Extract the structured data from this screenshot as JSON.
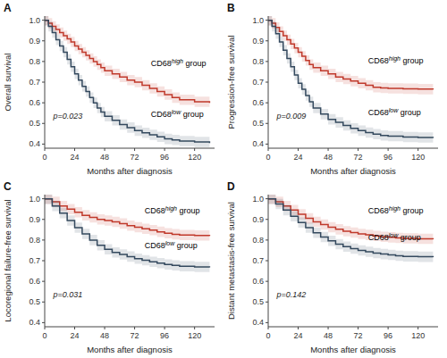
{
  "chart_data": [
    {
      "type": "step",
      "title": "A",
      "x_label": "Months after diagnosis",
      "y_label": "Overall survival",
      "xlim": [
        0,
        136
      ],
      "xticks": [
        0,
        24,
        48,
        72,
        96,
        120
      ],
      "ylim": [
        0.38,
        1.02
      ],
      "yticks": [
        0.4,
        0.5,
        0.6,
        0.7,
        0.8,
        0.9,
        {
          "value": 1.0,
          "label": "1.0"
        }
      ],
      "grid": false,
      "ci_halfwidth": 0.025,
      "annotations": [
        {
          "text": "p=0.023"
        }
      ],
      "x": [
        0,
        3,
        6,
        9,
        12,
        15,
        18,
        21,
        24,
        27,
        30,
        33,
        36,
        39,
        42,
        45,
        48,
        54,
        60,
        66,
        72,
        78,
        84,
        90,
        96,
        102,
        108,
        120,
        132
      ],
      "series": [
        {
          "name": "CD68 high group",
          "color": "#c0392b",
          "label_x": 85,
          "label_y": 0.78,
          "values": [
            1.0,
            0.985,
            0.97,
            0.955,
            0.94,
            0.925,
            0.91,
            0.895,
            0.875,
            0.86,
            0.845,
            0.83,
            0.815,
            0.8,
            0.785,
            0.77,
            0.755,
            0.74,
            0.725,
            0.71,
            0.7,
            0.685,
            0.67,
            0.655,
            0.64,
            0.625,
            0.615,
            0.605,
            0.6
          ]
        },
        {
          "name": "CD68 low group",
          "color": "#34495e",
          "label_x": 85,
          "label_y": 0.53,
          "values": [
            1.0,
            0.97,
            0.94,
            0.905,
            0.875,
            0.845,
            0.81,
            0.775,
            0.74,
            0.71,
            0.68,
            0.655,
            0.625,
            0.6,
            0.575,
            0.555,
            0.535,
            0.515,
            0.495,
            0.48,
            0.465,
            0.455,
            0.445,
            0.435,
            0.425,
            0.42,
            0.415,
            0.41,
            0.405
          ]
        }
      ]
    },
    {
      "type": "step",
      "title": "B",
      "x_label": "Months after diagnosis",
      "y_label": "Progression-free survival",
      "xlim": [
        0,
        136
      ],
      "xticks": [
        0,
        24,
        48,
        72,
        96,
        120
      ],
      "ylim": [
        0.38,
        1.02
      ],
      "yticks": [
        0.4,
        0.5,
        0.6,
        0.7,
        0.8,
        0.9,
        {
          "value": 1.0,
          "label": "1.0"
        }
      ],
      "grid": false,
      "ci_halfwidth": 0.025,
      "annotations": [
        {
          "text": "p=0.009"
        }
      ],
      "x": [
        0,
        3,
        6,
        9,
        12,
        15,
        18,
        21,
        24,
        27,
        30,
        33,
        36,
        42,
        48,
        54,
        60,
        66,
        72,
        78,
        84,
        90,
        96,
        108,
        120,
        132
      ],
      "series": [
        {
          "name": "CD68 high group",
          "color": "#c0392b",
          "label_x": 80,
          "label_y": 0.79,
          "values": [
            1.0,
            0.985,
            0.965,
            0.945,
            0.925,
            0.905,
            0.885,
            0.865,
            0.845,
            0.825,
            0.805,
            0.785,
            0.77,
            0.755,
            0.74,
            0.725,
            0.715,
            0.705,
            0.695,
            0.685,
            0.675,
            0.672,
            0.67,
            0.668,
            0.666,
            0.664
          ]
        },
        {
          "name": "CD68 low group",
          "color": "#34495e",
          "label_x": 80,
          "label_y": 0.54,
          "values": [
            1.0,
            0.97,
            0.935,
            0.895,
            0.855,
            0.815,
            0.775,
            0.735,
            0.695,
            0.665,
            0.635,
            0.605,
            0.575,
            0.545,
            0.52,
            0.505,
            0.49,
            0.476,
            0.465,
            0.456,
            0.448,
            0.442,
            0.438,
            0.434,
            0.432,
            0.43
          ]
        }
      ]
    },
    {
      "type": "step",
      "title": "C",
      "x_label": "Months after diagnosis",
      "y_label": "Locoregional failure-free survival",
      "xlim": [
        0,
        136
      ],
      "xticks": [
        0,
        24,
        48,
        72,
        96,
        120
      ],
      "ylim": [
        0.38,
        1.02
      ],
      "yticks": [
        0.4,
        0.5,
        0.6,
        0.7,
        0.8,
        0.9,
        {
          "value": 1.0,
          "label": "1.0"
        }
      ],
      "grid": false,
      "ci_halfwidth": 0.025,
      "annotations": [
        {
          "text": "p=0.031"
        }
      ],
      "x": [
        0,
        6,
        12,
        18,
        24,
        30,
        36,
        42,
        48,
        54,
        60,
        66,
        72,
        78,
        84,
        90,
        96,
        102,
        108,
        120,
        132
      ],
      "series": [
        {
          "name": "CD68 high group",
          "color": "#c0392b",
          "label_x": 80,
          "label_y": 0.93,
          "values": [
            1.0,
            0.985,
            0.965,
            0.95,
            0.935,
            0.92,
            0.91,
            0.9,
            0.895,
            0.888,
            0.88,
            0.87,
            0.862,
            0.855,
            0.848,
            0.84,
            0.833,
            0.828,
            0.824,
            0.822,
            0.82
          ]
        },
        {
          "name": "CD68 low group",
          "color": "#34495e",
          "label_x": 80,
          "label_y": 0.76,
          "values": [
            1.0,
            0.965,
            0.93,
            0.895,
            0.86,
            0.83,
            0.8,
            0.775,
            0.755,
            0.74,
            0.73,
            0.72,
            0.71,
            0.702,
            0.695,
            0.688,
            0.682,
            0.677,
            0.673,
            0.67,
            0.668
          ]
        }
      ]
    },
    {
      "type": "step",
      "title": "D",
      "x_label": "Months after diagnosis",
      "y_label": "Distant metastasis-free survival",
      "xlim": [
        0,
        136
      ],
      "xticks": [
        0,
        24,
        48,
        72,
        96,
        120
      ],
      "ylim": [
        0.38,
        1.02
      ],
      "yticks": [
        0.4,
        0.5,
        0.6,
        0.7,
        0.8,
        0.9,
        {
          "value": 1.0,
          "label": "1.0"
        }
      ],
      "grid": false,
      "ci_halfwidth": 0.025,
      "annotations": [
        {
          "text": "p=0.142"
        }
      ],
      "x": [
        0,
        6,
        12,
        18,
        24,
        30,
        36,
        42,
        48,
        54,
        60,
        66,
        72,
        78,
        84,
        90,
        96,
        102,
        108,
        120,
        132
      ],
      "series": [
        {
          "name": "CD68 high group",
          "color": "#c0392b",
          "label_x": 80,
          "label_y": 0.93,
          "values": [
            1.0,
            0.985,
            0.965,
            0.945,
            0.925,
            0.905,
            0.888,
            0.875,
            0.862,
            0.852,
            0.843,
            0.836,
            0.83,
            0.825,
            0.82,
            0.816,
            0.813,
            0.81,
            0.808,
            0.806,
            0.804
          ]
        },
        {
          "name": "CD68 low group",
          "color": "#34495e",
          "label_x": 80,
          "label_y": 0.8,
          "values": [
            1.0,
            0.975,
            0.945,
            0.915,
            0.885,
            0.86,
            0.835,
            0.815,
            0.796,
            0.78,
            0.768,
            0.758,
            0.75,
            0.743,
            0.737,
            0.732,
            0.728,
            0.724,
            0.721,
            0.719,
            0.717
          ]
        }
      ]
    }
  ]
}
